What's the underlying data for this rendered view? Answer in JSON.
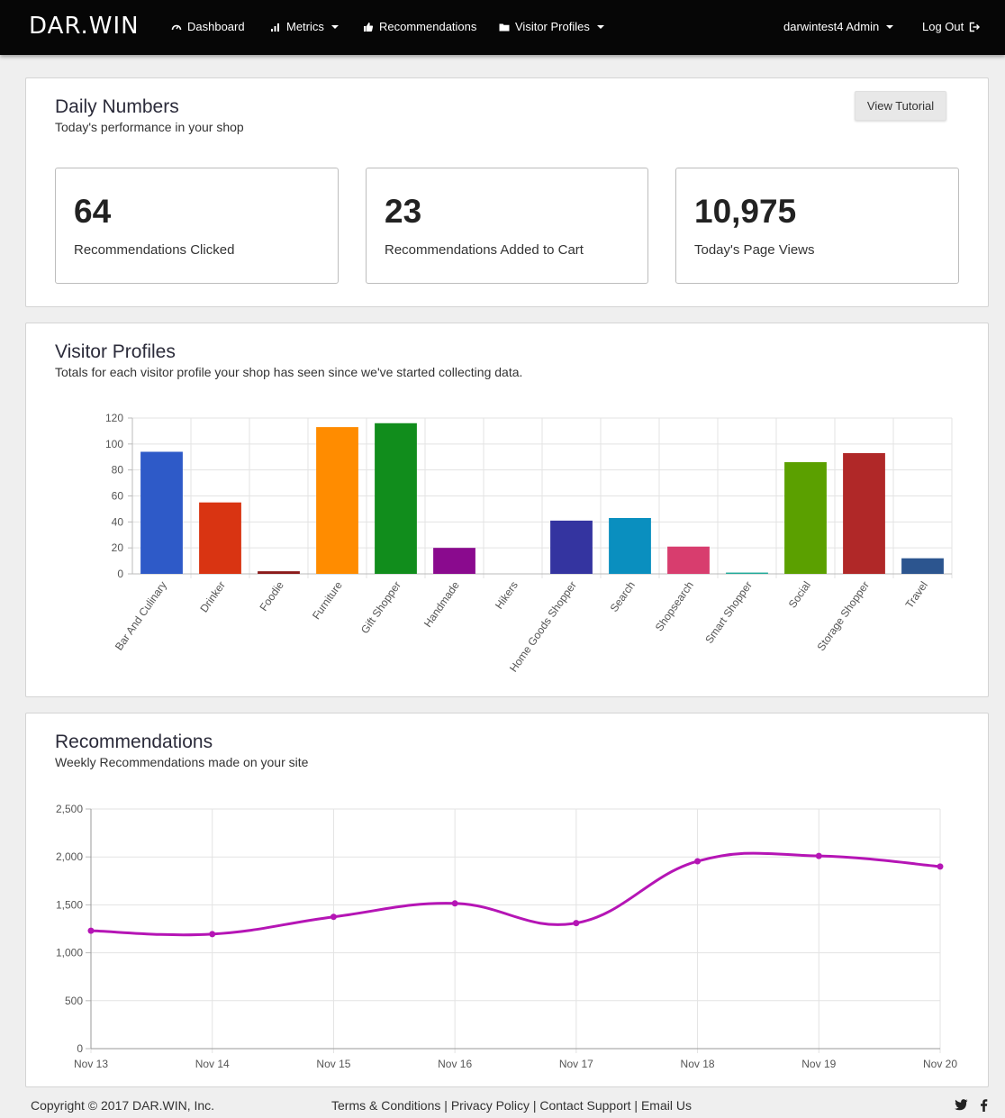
{
  "nav": {
    "brand": "DAR.WIN",
    "items": [
      {
        "label": "Dashboard"
      },
      {
        "label": "Metrics"
      },
      {
        "label": "Recommendations"
      },
      {
        "label": "Visitor Profiles"
      }
    ],
    "user": "darwintest4 Admin",
    "logout": "Log Out"
  },
  "daily": {
    "title": "Daily Numbers",
    "subtitle": "Today's performance in your shop",
    "tutorial_button": "View Tutorial",
    "stats": [
      {
        "value": "64",
        "label": "Recommendations Clicked"
      },
      {
        "value": "23",
        "label": "Recommendations Added to Cart"
      },
      {
        "value": "10,975",
        "label": "Today's Page Views"
      }
    ]
  },
  "visitor": {
    "title": "Visitor Profiles",
    "subtitle": "Totals for each visitor profile your shop has seen since we've started collecting data."
  },
  "recs": {
    "title": "Recommendations",
    "subtitle": "Weekly Recommendations made on your site"
  },
  "chart_data": [
    {
      "type": "bar",
      "categories": [
        "Bar And Culinary",
        "Drinker",
        "Foodie",
        "Furniture",
        "Gift Shopper",
        "Handmade",
        "Hikers",
        "Home Goods Shopper",
        "Search",
        "Shopsearch",
        "Smart Shopper",
        "Social",
        "Storage Shopper",
        "Travel"
      ],
      "values": [
        94,
        55,
        2,
        113,
        116,
        20,
        0,
        41,
        43,
        21,
        1,
        86,
        93,
        12
      ],
      "colors": [
        "#2e5ac8",
        "#d93412",
        "#8b1a1a",
        "#ff8c00",
        "#118d1c",
        "#8a0a8e",
        "#cccccc",
        "#3434a0",
        "#0a8fbf",
        "#d83d6e",
        "#22aa99",
        "#5ba000",
        "#b02828",
        "#2c558f"
      ],
      "ylim": [
        0,
        120
      ],
      "yticks": [
        0,
        20,
        40,
        60,
        80,
        100,
        120
      ],
      "grid": true
    },
    {
      "type": "line",
      "x": [
        "Nov 13",
        "Nov 14",
        "Nov 15",
        "Nov 16",
        "Nov 17",
        "Nov 18",
        "Nov 19",
        "Nov 20"
      ],
      "values": [
        1230,
        1195,
        1375,
        1515,
        1310,
        1955,
        2010,
        1900
      ],
      "color": "#b515b5",
      "ylim": [
        0,
        2500
      ],
      "yticks": [
        0,
        500,
        1000,
        1500,
        2000,
        2500
      ],
      "ytick_labels": [
        "0",
        "500",
        "1,000",
        "1,500",
        "2,000",
        "2,500"
      ],
      "grid": true
    }
  ],
  "footer": {
    "copyright": "Copyright © 2017 DAR.WIN, Inc.",
    "links": [
      "Terms & Conditions",
      "Privacy Policy",
      "Contact Support",
      "Email Us"
    ],
    "sep": " | ",
    "social_icons": [
      "twitter-icon",
      "facebook-icon"
    ]
  }
}
